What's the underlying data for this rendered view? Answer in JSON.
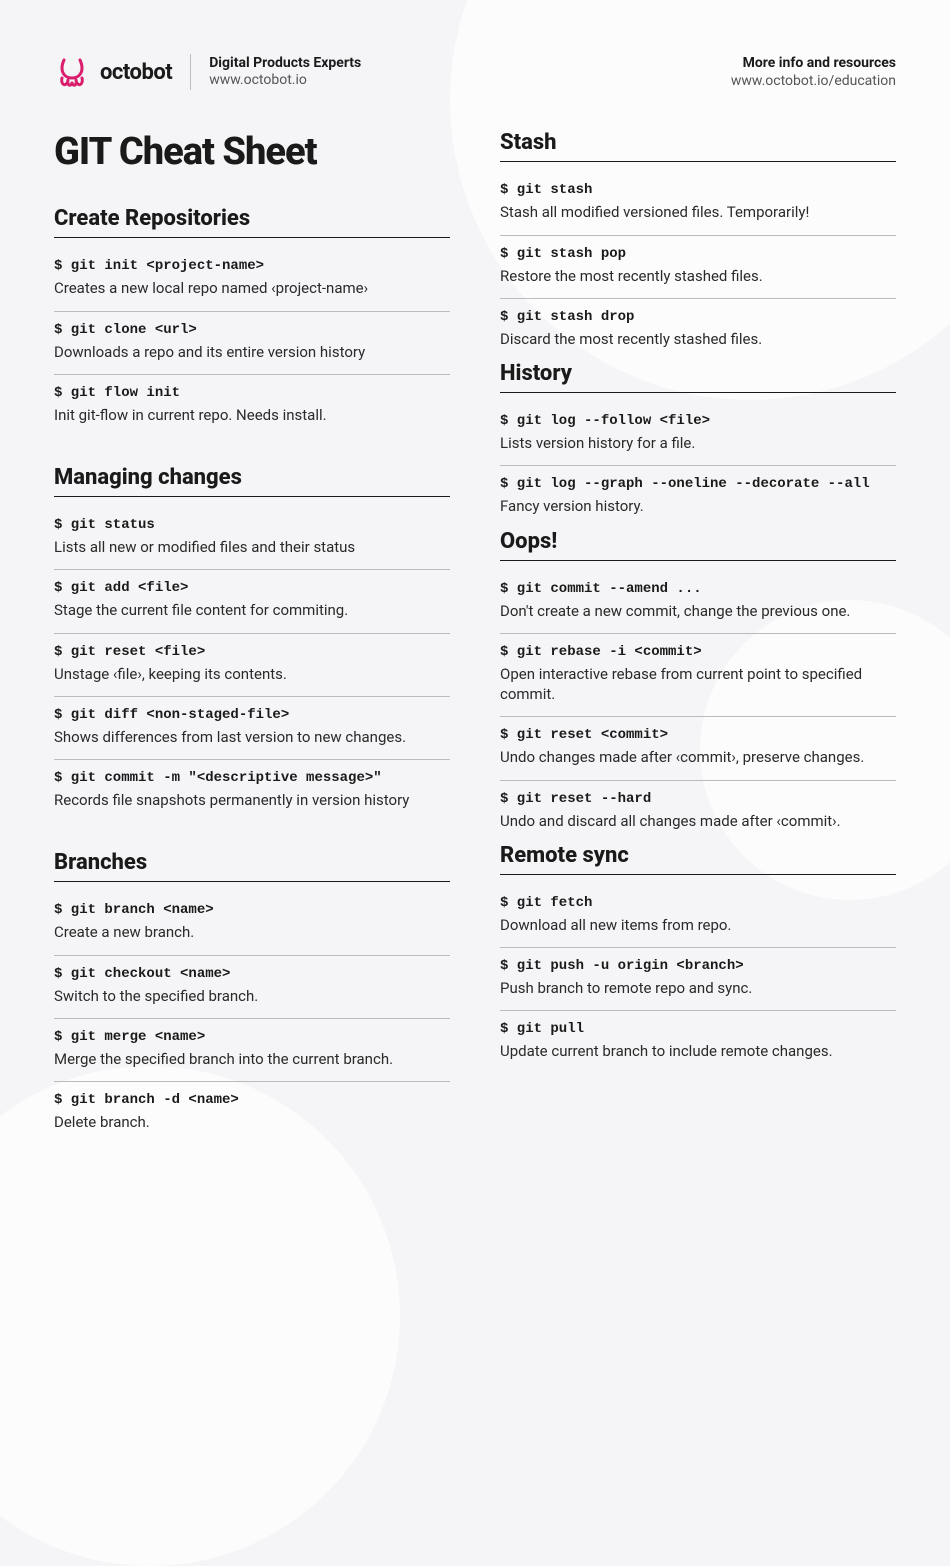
{
  "header": {
    "logo_text": "octobot",
    "tagline": "Digital Products Experts",
    "tagline_url": "www.octobot.io",
    "more_info": "More info and resources",
    "more_url": "www.octobot.io/education",
    "logo_color": "#d91e6e"
  },
  "page": {
    "title": "GIT Cheat Sheet"
  },
  "colors": {
    "background": "#f5f5f7",
    "text": "#1a1a1a",
    "muted": "#555555",
    "rule": "#1a1a1a",
    "rule_light": "#bbbbbb",
    "accent": "#d91e6e"
  },
  "typography": {
    "title_fontsize": 38,
    "section_fontsize": 22,
    "cmd_fontsize": 14,
    "desc_fontsize": 15,
    "cmd_font": "monospace",
    "weight_heavy": 800,
    "weight_bold": 700
  },
  "sections_left": [
    {
      "title": "Create Repositories",
      "entries": [
        {
          "cmd": "$ git init <project-name>",
          "desc": "Creates a new local repo named ‹project-name›"
        },
        {
          "cmd": "$ git clone <url>",
          "desc": "Downloads a repo and its entire version history"
        },
        {
          "cmd": "$ git flow init",
          "desc": "Init git-flow in current repo. Needs install."
        }
      ]
    },
    {
      "title": "Managing changes",
      "entries": [
        {
          "cmd": "$ git status",
          "desc": "Lists all new or modified files and their status"
        },
        {
          "cmd": "$ git add <file>",
          "desc": "Stage the current file content for commiting."
        },
        {
          "cmd": "$ git reset <file>",
          "desc": "Unstage ‹file›, keeping its contents."
        },
        {
          "cmd": "$ git diff <non-staged-file>",
          "desc": "Shows differences from last version to new changes."
        },
        {
          "cmd": "$ git commit -m \"<descriptive message>\"",
          "desc": "Records file snapshots permanently in version history"
        }
      ]
    },
    {
      "title": "Branches",
      "entries": [
        {
          "cmd": "$ git branch <name>",
          "desc": "Create a new branch."
        },
        {
          "cmd": "$ git checkout <name>",
          "desc": "Switch to the specified branch."
        },
        {
          "cmd": "$ git merge <name>",
          "desc": "Merge the specified branch into the current branch."
        },
        {
          "cmd": "$ git branch -d <name>",
          "desc": "Delete branch."
        }
      ]
    }
  ],
  "sections_right": [
    {
      "title": "Stash",
      "entries": [
        {
          "cmd": "$ git stash",
          "desc": "Stash all modified versioned files. Temporarily!"
        },
        {
          "cmd": "$ git stash pop",
          "desc": "Restore the most recently stashed files."
        },
        {
          "cmd": "$ git stash drop",
          "desc": "Discard the most recently stashed files."
        }
      ]
    },
    {
      "title": "History",
      "entries": [
        {
          "cmd": "$ git log --follow <file>",
          "desc": "Lists version history for a file."
        },
        {
          "cmd": "$ git log --graph --oneline --decorate --all",
          "desc": "Fancy version history."
        }
      ]
    },
    {
      "title": "Oops!",
      "entries": [
        {
          "cmd": "$ git commit --amend ...",
          "desc": "Don't create a new commit, change the previous one."
        },
        {
          "cmd": "$ git rebase -i <commit>",
          "desc": "Open interactive rebase from current point to specified commit."
        },
        {
          "cmd": "$ git reset <commit>",
          "desc": "Undo changes made after ‹commit›, preserve changes."
        },
        {
          "cmd": "$ git reset --hard",
          "desc": "Undo and discard all changes made after ‹commit›."
        }
      ]
    },
    {
      "title": "Remote sync",
      "entries": [
        {
          "cmd": "$ git fetch",
          "desc": "Download all new items from repo."
        },
        {
          "cmd": "$ git push -u origin <branch>",
          "desc": "Push branch to remote repo and sync."
        },
        {
          "cmd": "$ git pull",
          "desc": "Update current branch to include remote changes."
        }
      ]
    }
  ]
}
